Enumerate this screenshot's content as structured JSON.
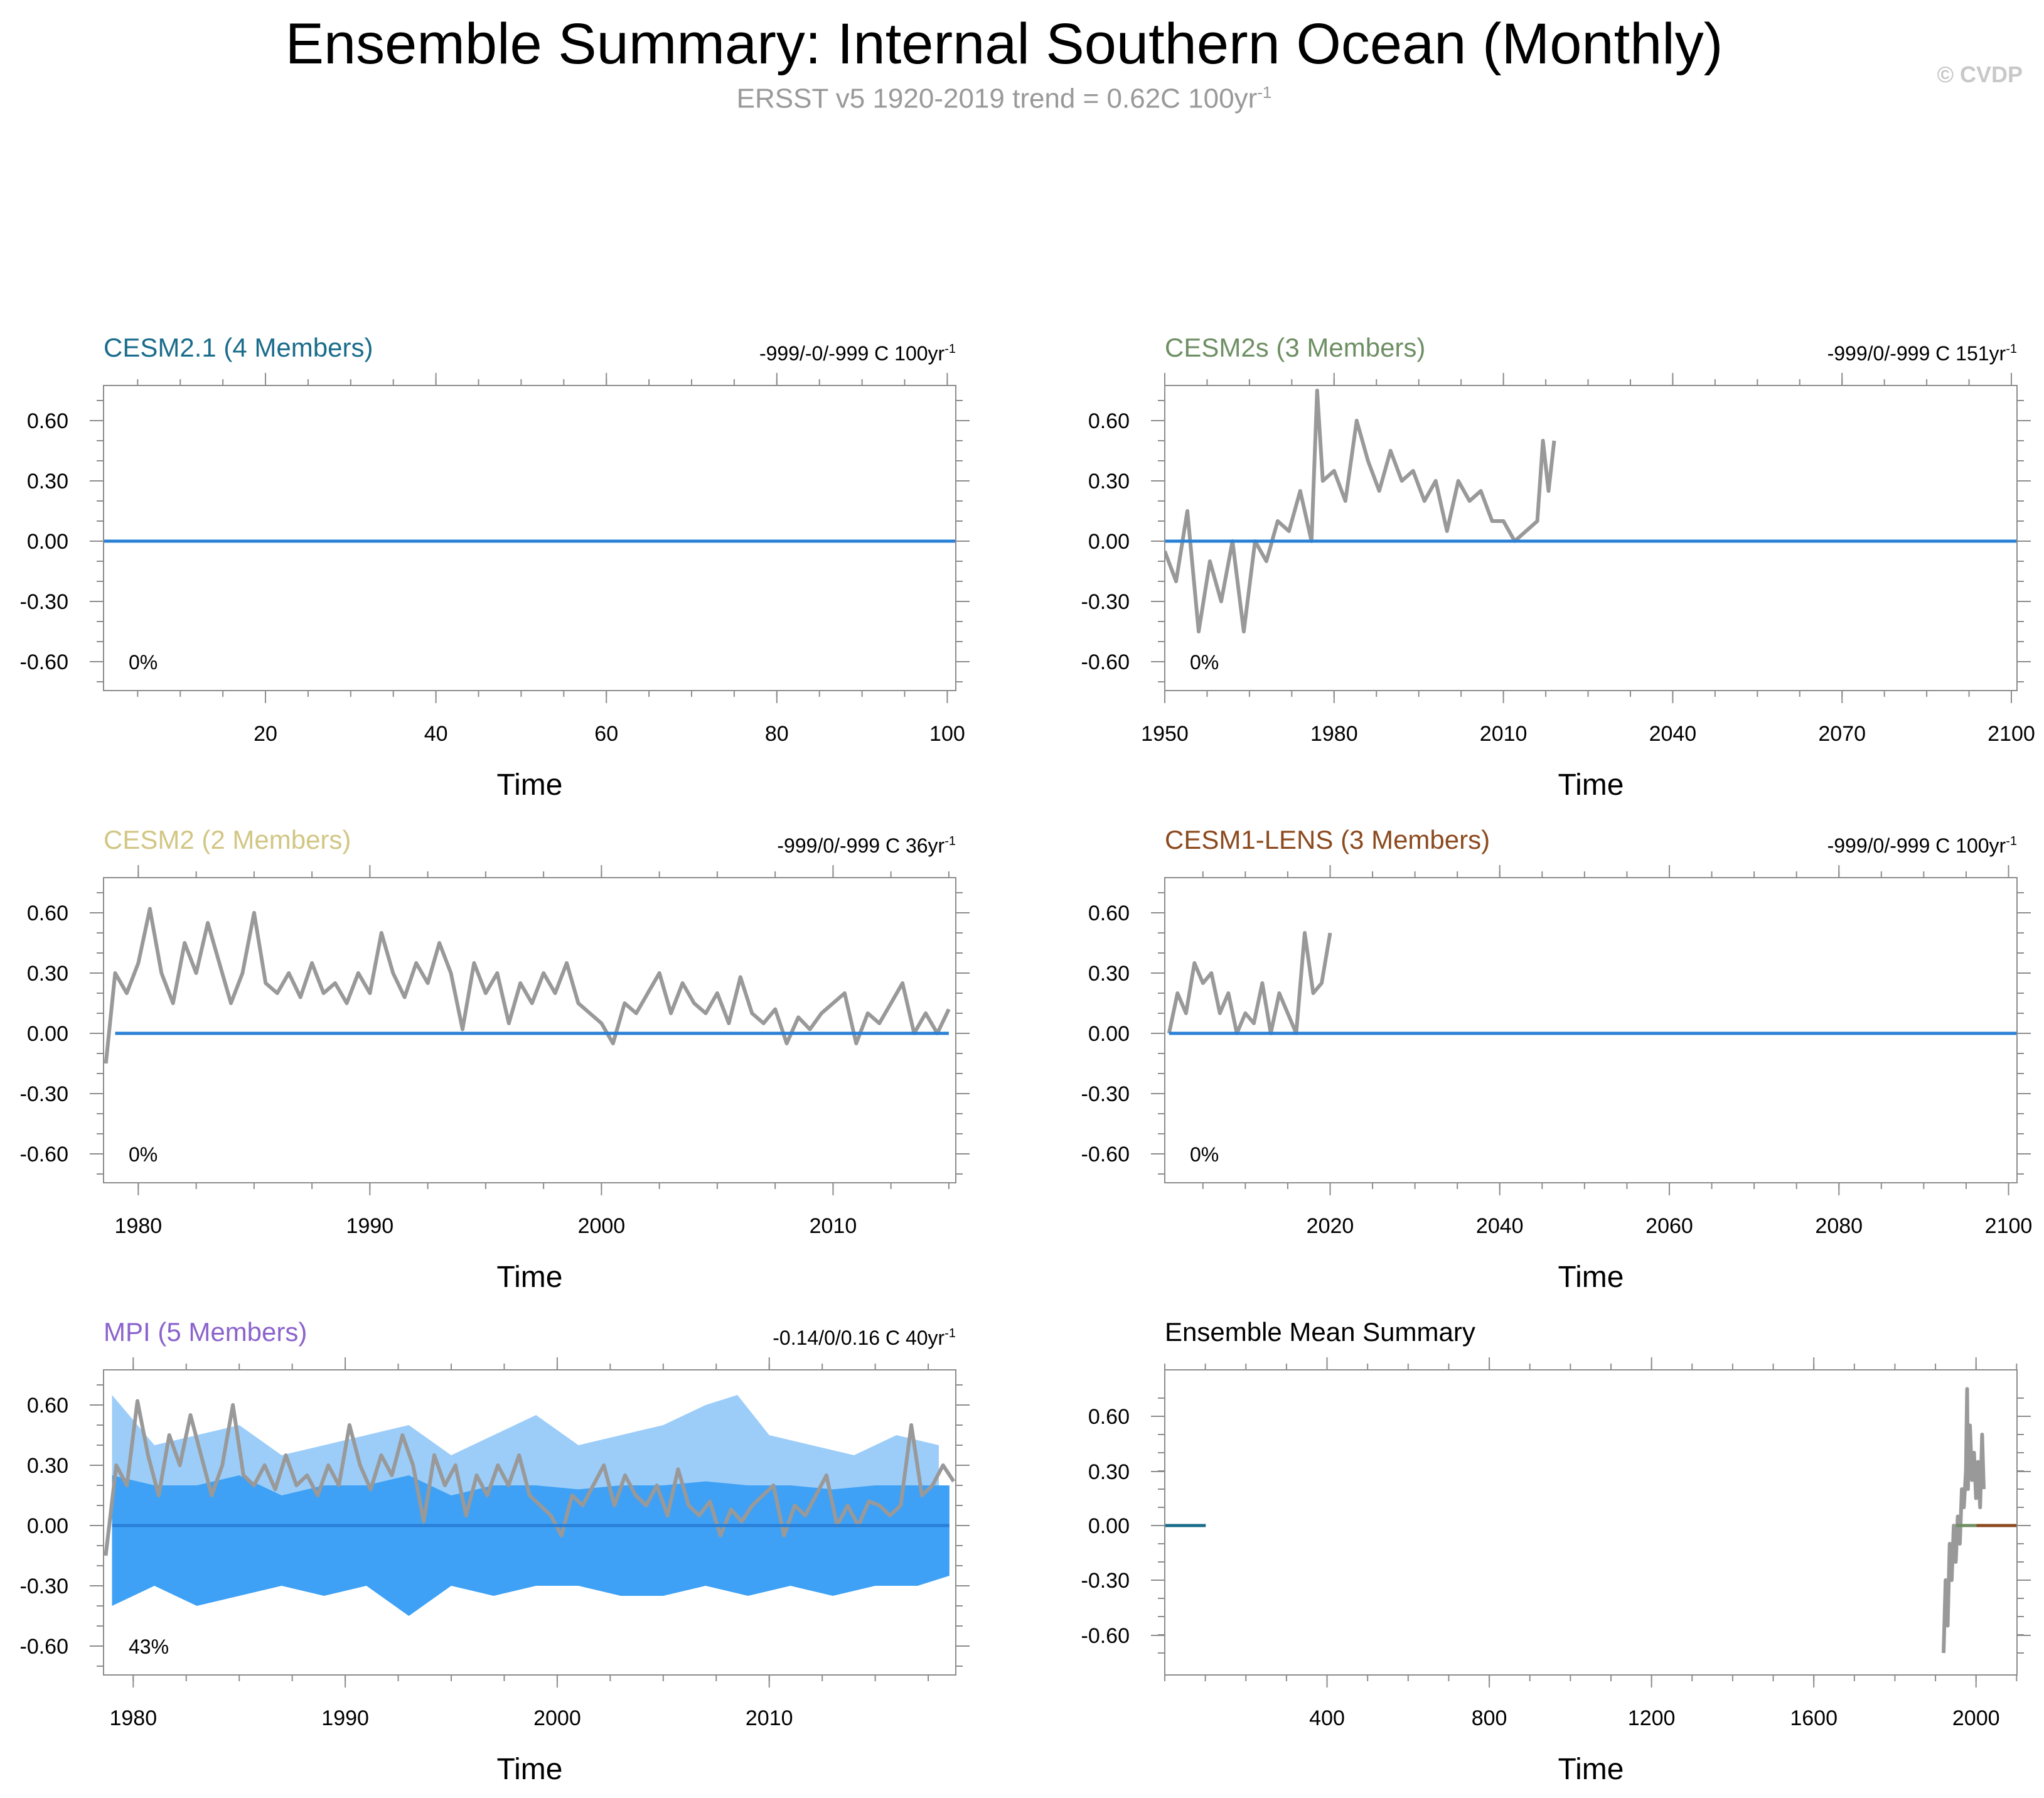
{
  "title": "Ensemble Summary: Internal Southern Ocean (Monthly)",
  "subtitle": {
    "text": "ERSST v5 1920-2019 trend = 0.62C 100yr",
    "superscript": "-1"
  },
  "credit": "© CVDP",
  "xlabel": "Time",
  "y_tick_labels": [
    "0.60",
    "0.30",
    "0.00",
    "-0.30",
    "-0.60"
  ],
  "colors": {
    "observations": "#999999",
    "ensemble_mean": "#2a80d6",
    "spread_light": "#9ccdf9",
    "spread_dark": "#3ea1f5"
  },
  "chart_data": [
    {
      "type": "line",
      "title": "CESM2.1 (4 Members)",
      "title_color": "#1a6c8c",
      "trend_text": "-999/-0/-999 C 100yr",
      "trend_sup": "-1",
      "percent": "0%",
      "xlabel": "Time",
      "xlim": [
        1,
        101
      ],
      "ylim": [
        -0.76,
        0.76
      ],
      "xticks": [
        20,
        40,
        60,
        80,
        100
      ],
      "xtick_labels": [
        "20",
        "40",
        "60",
        "80",
        "100"
      ],
      "series": [
        {
          "name": "ensemble mean",
          "x": [
            1,
            101
          ],
          "values": [
            0,
            0
          ]
        }
      ]
    },
    {
      "type": "line",
      "title": "CESM2s (3 Members)",
      "title_color": "#6e8f64",
      "trend_text": "-999/0/-999 C 151yr",
      "trend_sup": "-1",
      "percent": "0%",
      "xlabel": "Time",
      "xlim": [
        1950,
        2101
      ],
      "ylim": [
        -0.76,
        0.76
      ],
      "xticks": [
        1950,
        1980,
        2010,
        2040,
        2070,
        2100
      ],
      "xtick_labels": [
        "1950",
        "1980",
        "2010",
        "2040",
        "2070",
        "2100"
      ],
      "series": [
        {
          "name": "observations",
          "x": [
            1950,
            1952,
            1954,
            1956,
            1958,
            1960,
            1962,
            1964,
            1966,
            1968,
            1970,
            1972,
            1974,
            1976,
            1977,
            1978,
            1980,
            1982,
            1984,
            1986,
            1988,
            1990,
            1992,
            1994,
            1996,
            1998,
            2000,
            2002,
            2004,
            2006,
            2008,
            2010,
            2012,
            2014,
            2016,
            2017,
            2018,
            2019
          ],
          "values": [
            -0.05,
            -0.2,
            0.15,
            -0.45,
            -0.1,
            -0.3,
            0.0,
            -0.45,
            0.0,
            -0.1,
            0.1,
            0.05,
            0.25,
            0.0,
            0.75,
            0.3,
            0.35,
            0.2,
            0.6,
            0.4,
            0.25,
            0.45,
            0.3,
            0.35,
            0.2,
            0.3,
            0.05,
            0.3,
            0.2,
            0.25,
            0.1,
            0.1,
            0.0,
            0.05,
            0.1,
            0.5,
            0.25,
            0.5
          ]
        },
        {
          "name": "ensemble mean",
          "x": [
            1950,
            2101
          ],
          "values": [
            0,
            0
          ]
        }
      ]
    },
    {
      "type": "line",
      "title": "CESM2 (2 Members)",
      "title_color": "#d2c684",
      "trend_text": "-999/0/-999 C 36yr",
      "trend_sup": "-1",
      "percent": "0%",
      "xlabel": "Time",
      "xlim": [
        1978.5,
        2015.3
      ],
      "ylim": [
        -0.76,
        0.76
      ],
      "xticks": [
        1980,
        1990,
        2000,
        2010
      ],
      "xtick_labels": [
        "1980",
        "1990",
        "2000",
        "2010"
      ],
      "series": [
        {
          "name": "observations",
          "x": [
            1978.6,
            1979,
            1979.5,
            1980,
            1980.5,
            1981,
            1981.5,
            1982,
            1982.5,
            1983,
            1983.5,
            1984,
            1984.5,
            1985,
            1985.5,
            1986,
            1986.5,
            1987,
            1987.5,
            1988,
            1988.5,
            1989,
            1989.5,
            1990,
            1990.5,
            1991,
            1991.5,
            1992,
            1992.5,
            1993,
            1993.5,
            1994,
            1994.5,
            1995,
            1995.5,
            1996,
            1996.5,
            1997,
            1997.5,
            1998,
            1998.5,
            1999,
            1999.5,
            2000,
            2000.5,
            2001,
            2001.5,
            2002,
            2002.5,
            2003,
            2003.5,
            2004,
            2004.5,
            2005,
            2005.5,
            2006,
            2006.5,
            2007,
            2007.5,
            2008,
            2008.5,
            2009,
            2009.5,
            2010,
            2010.5,
            2011,
            2011.5,
            2012,
            2012.5,
            2013,
            2013.5,
            2014,
            2014.5,
            2015
          ],
          "values": [
            -0.15,
            0.3,
            0.2,
            0.35,
            0.62,
            0.3,
            0.15,
            0.45,
            0.3,
            0.55,
            0.35,
            0.15,
            0.3,
            0.6,
            0.25,
            0.2,
            0.3,
            0.18,
            0.35,
            0.2,
            0.25,
            0.15,
            0.3,
            0.2,
            0.5,
            0.3,
            0.18,
            0.35,
            0.25,
            0.45,
            0.3,
            0.02,
            0.35,
            0.2,
            0.3,
            0.05,
            0.25,
            0.15,
            0.3,
            0.2,
            0.35,
            0.15,
            0.1,
            0.05,
            -0.05,
            0.15,
            0.1,
            0.2,
            0.3,
            0.1,
            0.25,
            0.15,
            0.1,
            0.2,
            0.05,
            0.28,
            0.1,
            0.05,
            0.12,
            -0.05,
            0.08,
            0.02,
            0.1,
            0.15,
            0.2,
            -0.05,
            0.1,
            0.05,
            0.15,
            0.25,
            0.0,
            0.1,
            0.0,
            0.12
          ]
        },
        {
          "name": "ensemble mean",
          "x": [
            1979,
            2015
          ],
          "values": [
            0,
            0
          ]
        }
      ]
    },
    {
      "type": "line",
      "title": "CESM1-LENS (3 Members)",
      "title_color": "#8c4a1e",
      "trend_text": "-999/0/-999 C 100yr",
      "trend_sup": "-1",
      "percent": "0%",
      "xlabel": "Time",
      "xlim": [
        2000.5,
        2101
      ],
      "ylim": [
        -0.76,
        0.76
      ],
      "xticks": [
        2020,
        2040,
        2060,
        2080,
        2100
      ],
      "xtick_labels": [
        "2020",
        "2040",
        "2060",
        "2080",
        "2100"
      ],
      "series": [
        {
          "name": "observations",
          "x": [
            2001,
            2002,
            2003,
            2004,
            2005,
            2006,
            2007,
            2008,
            2009,
            2010,
            2011,
            2012,
            2013,
            2014,
            2015,
            2016,
            2017,
            2018,
            2019,
            2020
          ],
          "values": [
            0.0,
            0.2,
            0.1,
            0.35,
            0.25,
            0.3,
            0.1,
            0.2,
            0.0,
            0.1,
            0.05,
            0.25,
            0.0,
            0.2,
            0.1,
            0.0,
            0.5,
            0.2,
            0.25,
            0.5
          ]
        },
        {
          "name": "ensemble mean",
          "x": [
            2001,
            2101
          ],
          "values": [
            0,
            0
          ]
        }
      ]
    },
    {
      "type": "area",
      "title": "MPI (5 Members)",
      "title_color": "#8b63cc",
      "trend_text": "-0.14/0/0.16 C 40yr",
      "trend_sup": "-1",
      "percent": "43%",
      "xlabel": "Time",
      "xlim": [
        1978.6,
        2018.8
      ],
      "ylim": [
        -0.76,
        0.76
      ],
      "xticks": [
        1980,
        1990,
        2000,
        2010
      ],
      "xtick_labels": [
        "1980",
        "1990",
        "2000",
        "2010"
      ],
      "spread_light": {
        "x": [
          1979,
          1981,
          1983,
          1985,
          1987,
          1989,
          1991,
          1993,
          1995,
          1997,
          1999,
          2001,
          2003,
          2005,
          2007,
          2008.5,
          2010,
          2012,
          2014,
          2016,
          2018
        ],
        "upper": [
          0.65,
          0.4,
          0.45,
          0.5,
          0.35,
          0.4,
          0.45,
          0.5,
          0.35,
          0.45,
          0.55,
          0.4,
          0.45,
          0.5,
          0.6,
          0.65,
          0.45,
          0.4,
          0.35,
          0.45,
          0.4
        ]
      },
      "spread_dark": {
        "x": [
          1979,
          1981,
          1983,
          1985,
          1987,
          1989,
          1991,
          1993,
          1995,
          1997,
          1999,
          2001,
          2003,
          2005,
          2007,
          2009,
          2011,
          2013,
          2015,
          2017,
          2018.5
        ],
        "upper": [
          0.25,
          0.2,
          0.2,
          0.25,
          0.15,
          0.2,
          0.2,
          0.25,
          0.15,
          0.2,
          0.2,
          0.18,
          0.2,
          0.2,
          0.22,
          0.2,
          0.2,
          0.18,
          0.2,
          0.2,
          0.2
        ],
        "lower": [
          -0.4,
          -0.3,
          -0.4,
          -0.35,
          -0.3,
          -0.35,
          -0.3,
          -0.45,
          -0.3,
          -0.35,
          -0.3,
          -0.3,
          -0.35,
          -0.35,
          -0.3,
          -0.35,
          -0.3,
          -0.35,
          -0.3,
          -0.3,
          -0.25
        ]
      },
      "series": [
        {
          "name": "observations",
          "x": [
            1978.7,
            1979.2,
            1979.7,
            1980.2,
            1980.7,
            1981.2,
            1981.7,
            1982.2,
            1982.7,
            1983.2,
            1983.7,
            1984.2,
            1984.7,
            1985.2,
            1985.7,
            1986.2,
            1986.7,
            1987.2,
            1987.7,
            1988.2,
            1988.7,
            1989.2,
            1989.7,
            1990.2,
            1990.7,
            1991.2,
            1991.7,
            1992.2,
            1992.7,
            1993.2,
            1993.7,
            1994.2,
            1994.7,
            1995.2,
            1995.7,
            1996.2,
            1996.7,
            1997.2,
            1997.7,
            1998.2,
            1998.7,
            1999.2,
            1999.7,
            2000.2,
            2000.7,
            2001.2,
            2001.7,
            2002.2,
            2002.7,
            2003.2,
            2003.7,
            2004.2,
            2004.7,
            2005.2,
            2005.7,
            2006.2,
            2006.7,
            2007.2,
            2007.7,
            2008.2,
            2008.7,
            2009.2,
            2009.7,
            2010.2,
            2010.7,
            2011.2,
            2011.7,
            2012.2,
            2012.7,
            2013.2,
            2013.7,
            2014.2,
            2014.7,
            2015.2,
            2015.7,
            2016.2,
            2016.7,
            2017.2,
            2017.7,
            2018.2,
            2018.7
          ],
          "values": [
            -0.15,
            0.3,
            0.2,
            0.62,
            0.35,
            0.15,
            0.45,
            0.3,
            0.55,
            0.35,
            0.15,
            0.3,
            0.6,
            0.25,
            0.2,
            0.3,
            0.18,
            0.35,
            0.2,
            0.25,
            0.15,
            0.3,
            0.2,
            0.5,
            0.3,
            0.18,
            0.35,
            0.25,
            0.45,
            0.3,
            0.02,
            0.35,
            0.2,
            0.3,
            0.05,
            0.25,
            0.15,
            0.3,
            0.2,
            0.35,
            0.15,
            0.1,
            0.05,
            -0.05,
            0.15,
            0.1,
            0.2,
            0.3,
            0.1,
            0.25,
            0.15,
            0.1,
            0.2,
            0.05,
            0.28,
            0.1,
            0.05,
            0.12,
            -0.05,
            0.08,
            0.02,
            0.1,
            0.15,
            0.2,
            -0.05,
            0.1,
            0.05,
            0.15,
            0.25,
            0.0,
            0.1,
            0.0,
            0.12,
            0.1,
            0.05,
            0.1,
            0.5,
            0.15,
            0.2,
            0.3,
            0.22
          ]
        },
        {
          "name": "ensemble mean",
          "x": [
            1979,
            2018.5
          ],
          "values": [
            0,
            0
          ]
        }
      ]
    },
    {
      "type": "line",
      "title": "Ensemble Mean Summary",
      "title_color": "#000000",
      "trend_text": "",
      "trend_sup": "",
      "percent": "",
      "xlabel": "Time",
      "xlim": [
        0,
        2101
      ],
      "ylim": [
        -0.76,
        0.76
      ],
      "xticks": [
        400,
        800,
        1200,
        1600,
        2000
      ],
      "xtick_labels": [
        "400",
        "800",
        "1200",
        "1600",
        "2000"
      ],
      "series": [
        {
          "name": "observations",
          "x": [
            1920,
            1925,
            1930,
            1935,
            1940,
            1945,
            1950,
            1955,
            1960,
            1965,
            1970,
            1975,
            1978,
            1980,
            1985,
            1990,
            1995,
            2000,
            2005,
            2010,
            2015,
            2019
          ],
          "values": [
            -0.7,
            -0.3,
            -0.55,
            -0.1,
            -0.3,
            0.0,
            -0.2,
            0.05,
            -0.1,
            0.2,
            0.1,
            0.3,
            0.75,
            0.2,
            0.55,
            0.25,
            0.4,
            0.15,
            0.35,
            0.1,
            0.5,
            0.2
          ]
        },
        {
          "name": "CESM2.1",
          "color": "#1a6c8c",
          "x": [
            1,
            101
          ],
          "values": [
            0,
            0
          ]
        },
        {
          "name": "CESM2",
          "color": "#d2c684",
          "x": [
            1979,
            2015
          ],
          "values": [
            0,
            0
          ]
        },
        {
          "name": "MPI",
          "color": "#8b63cc",
          "x": [
            1979,
            2018
          ],
          "values": [
            0,
            0
          ]
        },
        {
          "name": "CESM2s",
          "color": "#6e8f64",
          "x": [
            1950,
            2019
          ],
          "values": [
            0,
            0
          ]
        },
        {
          "name": "CESM1-LENS",
          "color": "#8c4a1e",
          "x": [
            2001,
            2101
          ],
          "values": [
            0,
            0
          ]
        }
      ]
    }
  ]
}
